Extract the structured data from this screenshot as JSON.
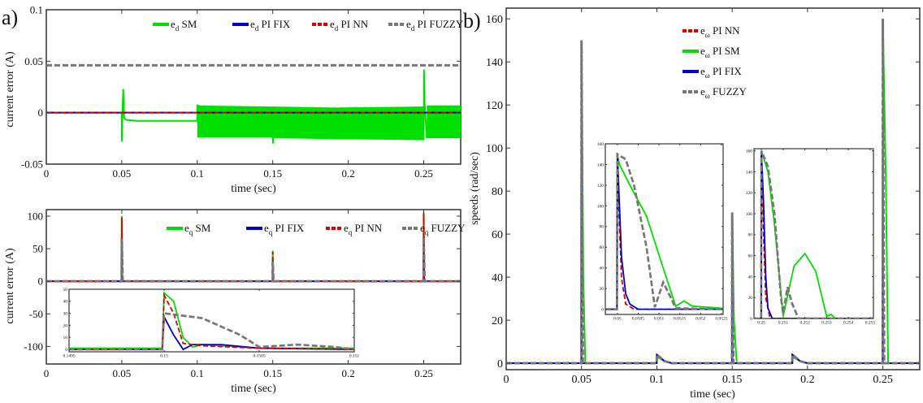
{
  "panel_labels": [
    "a)",
    "b)"
  ],
  "styles": {
    "SM": {
      "color": "#00e000",
      "dash": "none",
      "width": 2
    },
    "FIX": {
      "color": "#0000cc",
      "dash": "none",
      "width": 2
    },
    "NN": {
      "color": "#dd0000",
      "dash": "6 3",
      "width": 2
    },
    "FUZZY": {
      "color": "#777777",
      "dash": "7 3",
      "width": 3
    }
  },
  "chart_data": [
    {
      "id": "ed",
      "type": "line",
      "xlabel": "time (sec)",
      "ylabel": "current error (A)",
      "xlim": [
        0,
        0.2745
      ],
      "ylim": [
        -0.05,
        0.1
      ],
      "xticks": [
        "0",
        "0.05",
        "0.1",
        "0.15",
        "0.2",
        "0.25"
      ],
      "xtick_values": [
        0,
        0.05,
        0.1,
        0.15,
        0.2,
        0.25
      ],
      "yticks": [
        "-0.05",
        "0",
        "0.05",
        "0.1"
      ],
      "ytick_values": [
        -0.05,
        0,
        0.05,
        0.1
      ],
      "grid": false,
      "legend_position": "top",
      "legend": [
        {
          "base": "e",
          "sub": "d",
          "text": " SM",
          "style": "SM"
        },
        {
          "base": "e",
          "sub": "d",
          "text": "  PI FIX",
          "style": "FIX"
        },
        {
          "base": "e",
          "sub": "d",
          "text": "  PI NN",
          "style": "NN"
        },
        {
          "base": "e",
          "sub": "d",
          "text": "  PI FUZZY",
          "style": "FUZZY"
        }
      ],
      "bands": [
        {
          "style": "SM",
          "x": [
            0.1,
            0.15,
            0.19,
            0.2499
          ],
          "upper": [
            0.007,
            0.006,
            0.005,
            0.006
          ],
          "lower": [
            -0.024,
            -0.024,
            -0.026,
            -0.026
          ]
        },
        {
          "style": "SM",
          "x": [
            0.252,
            0.2745
          ],
          "upper": [
            0.007,
            0.007
          ],
          "lower": [
            -0.024,
            -0.024
          ]
        }
      ],
      "series": [
        {
          "style": "SM",
          "x": [
            0,
            0.0499,
            0.05,
            0.0505,
            0.051,
            0.0515,
            0.052,
            0.053,
            0.06,
            0.1,
            0.1,
            0.15,
            0.1502,
            0.1504,
            0.25,
            0.2502,
            0.2504,
            0.2506,
            0.252,
            0.2745
          ],
          "y": [
            0,
            0,
            -0.028,
            0.005,
            0.023,
            -0.004,
            -0.006,
            -0.007,
            -0.008,
            -0.008,
            0.007,
            -0.024,
            -0.03,
            -0.024,
            -0.026,
            0.042,
            0.026,
            0.01,
            -0.024,
            -0.024
          ]
        },
        {
          "style": "FIX",
          "x": [
            0,
            0.2745
          ],
          "y": [
            0,
            0
          ]
        },
        {
          "style": "NN",
          "x": [
            0,
            0.2745
          ],
          "y": [
            0,
            0
          ]
        },
        {
          "style": "FUZZY",
          "x": [
            0,
            0.2745
          ],
          "y": [
            0.046,
            0.046
          ]
        }
      ]
    },
    {
      "id": "eq",
      "type": "line",
      "xlabel": "time (sec)",
      "ylabel": "current error (A)",
      "xlim": [
        0,
        0.2745
      ],
      "ylim": [
        -127,
        110
      ],
      "xticks": [
        "0",
        "0.05",
        "0.1",
        "0.15",
        "0.2",
        "0.25"
      ],
      "xtick_values": [
        0,
        0.05,
        0.1,
        0.15,
        0.2,
        0.25
      ],
      "yticks": [
        "-100",
        "-50",
        "0",
        "50",
        "100"
      ],
      "ytick_values": [
        -100,
        -50,
        0,
        50,
        100
      ],
      "grid": false,
      "legend_position": "top",
      "legend": [
        {
          "base": "e",
          "sub": "q",
          "text": " SM",
          "style": "SM"
        },
        {
          "base": "e",
          "sub": "q",
          "text": "  PI FIX",
          "style": "FIX"
        },
        {
          "base": "e",
          "sub": "q",
          "text": "  PI NN",
          "style": "NN"
        },
        {
          "base": "e",
          "sub": "q",
          "text": " FUZZY",
          "style": "FUZZY"
        }
      ],
      "series": [
        {
          "style": "SM",
          "x": [
            0,
            0.0499,
            0.05,
            0.0503,
            0.1499,
            0.15,
            0.1502,
            0.2499,
            0.25,
            0.2503,
            0.2745
          ],
          "y": [
            0,
            0,
            100,
            0,
            0,
            47,
            0,
            0,
            106,
            0,
            0
          ]
        },
        {
          "style": "FIX",
          "x": [
            0,
            0.0499,
            0.05,
            0.0503,
            0.1499,
            0.15,
            0.1502,
            0.2499,
            0.25,
            0.2503,
            0.2745
          ],
          "y": [
            0,
            0,
            60,
            0,
            0,
            27,
            0,
            0,
            70,
            0,
            0
          ]
        },
        {
          "style": "NN",
          "x": [
            0,
            0.0499,
            0.05,
            0.0503,
            0.1499,
            0.15,
            0.1502,
            0.2499,
            0.25,
            0.2503,
            0.2745
          ],
          "y": [
            0,
            0,
            98,
            0,
            0,
            45,
            0,
            0,
            104,
            0,
            0
          ]
        },
        {
          "style": "FUZZY",
          "x": [
            0,
            0.0499,
            0.05,
            0.0506,
            0.1499,
            0.15,
            0.1505,
            0.2499,
            0.25,
            0.2506,
            0.2745
          ],
          "y": [
            0,
            0,
            65,
            0,
            0,
            30,
            0,
            0,
            68,
            0,
            0
          ]
        }
      ]
    },
    {
      "id": "eq_inset",
      "type": "line",
      "xlim": [
        0.1495,
        0.151
      ],
      "ylim": [
        -2,
        50
      ],
      "xticks": [
        "0.1495",
        "0.15",
        "0.1505",
        "0.151"
      ],
      "xtick_values": [
        0.1495,
        0.15,
        0.1505,
        0.151
      ],
      "yticks": [
        "0",
        "10",
        "20",
        "30",
        "40",
        "50"
      ],
      "ytick_values": [
        0,
        10,
        20,
        30,
        40,
        50
      ],
      "grid": false,
      "series": [
        {
          "style": "SM",
          "x": [
            0.1495,
            0.14999,
            0.15,
            0.15005,
            0.1501,
            0.15015,
            0.1502,
            0.1503,
            0.1505,
            0.151
          ],
          "y": [
            1,
            1,
            47,
            40,
            10,
            2,
            4,
            3,
            1,
            1
          ]
        },
        {
          "style": "FIX",
          "x": [
            0.1495,
            0.14999,
            0.15,
            0.15005,
            0.1501,
            0.15015,
            0.1503,
            0.1505,
            0.151
          ],
          "y": [
            0,
            0,
            27,
            12,
            0,
            4,
            4,
            1,
            0
          ]
        },
        {
          "style": "NN",
          "x": [
            0.1495,
            0.14999,
            0.15,
            0.15005,
            0.1501,
            0.1502,
            0.1505,
            0.151
          ],
          "y": [
            0,
            0,
            45,
            30,
            5,
            3,
            1,
            0
          ]
        },
        {
          "style": "FUZZY",
          "x": [
            0.1495,
            0.14999,
            0.15,
            0.1502,
            0.1504,
            0.1505,
            0.1507,
            0.1509,
            0.151
          ],
          "y": [
            0,
            0,
            30,
            26,
            12,
            2,
            4,
            2,
            0
          ]
        }
      ]
    },
    {
      "id": "speed",
      "type": "line",
      "xlabel": "time (sec)",
      "ylabel": "speeds (rad/sec)",
      "xlim": [
        0,
        0.2745
      ],
      "ylim": [
        -3,
        165
      ],
      "xticks": [
        "0",
        "0.05",
        "0.1",
        "0.15",
        "0.2",
        "0.25"
      ],
      "xtick_values": [
        0,
        0.05,
        0.1,
        0.15,
        0.2,
        0.25
      ],
      "yticks": [
        "0",
        "20",
        "40",
        "60",
        "80",
        "100",
        "120",
        "140",
        "160"
      ],
      "ytick_values": [
        0,
        20,
        40,
        60,
        80,
        100,
        120,
        140,
        160
      ],
      "grid": false,
      "legend_position": "top-center",
      "legend": [
        {
          "base": "e",
          "sub": "ω",
          "text": " PI NN",
          "style": "NN"
        },
        {
          "base": "e",
          "sub": "ω",
          "text": " PI SM",
          "style": "SM"
        },
        {
          "base": "e",
          "sub": "ω",
          "text": "  PI FIX",
          "style": "FIX"
        },
        {
          "base": "e",
          "sub": "ω",
          "text": "  FUZZY",
          "style": "FUZZY"
        }
      ],
      "series": [
        {
          "style": "SM",
          "x": [
            0,
            0.0499,
            0.05,
            0.0512,
            0.0525,
            0.0999,
            0.1,
            0.105,
            0.11,
            0.1499,
            0.15,
            0.1512,
            0.153,
            0.1899,
            0.19,
            0.195,
            0.2,
            0.2499,
            0.25,
            0.252,
            0.2535,
            0.2745
          ],
          "y": [
            0,
            0,
            150,
            40,
            0,
            0,
            3,
            1,
            0,
            0,
            70,
            20,
            0,
            0,
            3,
            1,
            0,
            0,
            160,
            85,
            0,
            0
          ]
        },
        {
          "style": "NN",
          "x": [
            0,
            0.0499,
            0.05,
            0.0502,
            0.0999,
            0.1,
            0.105,
            0.11,
            0.1499,
            0.15,
            0.1502,
            0.1899,
            0.19,
            0.195,
            0.2,
            0.2499,
            0.25,
            0.2502,
            0.2745
          ],
          "y": [
            0,
            0,
            150,
            0,
            0,
            4,
            1,
            0,
            0,
            70,
            0,
            0,
            4,
            1,
            0,
            0,
            160,
            0,
            0
          ]
        },
        {
          "style": "FIX",
          "x": [
            0,
            0.0499,
            0.05,
            0.0503,
            0.0999,
            0.1,
            0.105,
            0.11,
            0.1499,
            0.15,
            0.1503,
            0.1899,
            0.19,
            0.195,
            0.2,
            0.2499,
            0.25,
            0.2503,
            0.2745
          ],
          "y": [
            0,
            0,
            150,
            0,
            0,
            4,
            1,
            0,
            0,
            70,
            0,
            0,
            4,
            1,
            0,
            0,
            160,
            0,
            0
          ]
        },
        {
          "style": "FUZZY",
          "x": [
            0,
            0.0499,
            0.05,
            0.0509,
            0.0999,
            0.1,
            0.105,
            0.11,
            0.1499,
            0.15,
            0.1508,
            0.1899,
            0.19,
            0.195,
            0.2,
            0.2499,
            0.25,
            0.2509,
            0.2745
          ],
          "y": [
            0,
            0,
            150,
            0,
            0,
            4,
            1,
            0,
            0,
            70,
            0,
            0,
            4,
            1,
            0,
            0,
            160,
            0,
            0
          ]
        }
      ]
    },
    {
      "id": "speed_inset1",
      "type": "line",
      "xlim": [
        0.04971,
        0.05254
      ],
      "ylim": [
        -5,
        160
      ],
      "xticks": [
        "0.05",
        "0.0505",
        "0.051",
        "0.0515",
        "0.052",
        "0.0525"
      ],
      "xtick_values": [
        0.05,
        0.0505,
        0.051,
        0.0515,
        0.052,
        0.0525
      ],
      "yticks": [
        "0",
        "20",
        "40",
        "60",
        "80",
        "100",
        "120",
        "140",
        "160"
      ],
      "ytick_values": [
        0,
        20,
        40,
        60,
        80,
        100,
        120,
        140,
        160
      ],
      "grid": false,
      "series": [
        {
          "style": "SM",
          "x": [
            0.04971,
            0.04999,
            0.05,
            0.05005,
            0.0503,
            0.0507,
            0.0511,
            0.0514,
            0.0516,
            0.0518,
            0.05254
          ],
          "y": [
            0,
            0,
            150,
            140,
            120,
            90,
            40,
            3,
            8,
            3,
            1
          ]
        },
        {
          "style": "NN",
          "x": [
            0.04971,
            0.04999,
            0.05,
            0.05005,
            0.0501,
            0.0502,
            0.0504,
            0.05254
          ],
          "y": [
            0,
            0,
            150,
            80,
            30,
            5,
            0,
            0
          ]
        },
        {
          "style": "FIX",
          "x": [
            0.04971,
            0.04999,
            0.05,
            0.05005,
            0.0501,
            0.0502,
            0.0503,
            0.0505,
            0.05254
          ],
          "y": [
            0,
            0,
            150,
            100,
            50,
            15,
            5,
            0,
            0
          ]
        },
        {
          "style": "FUZZY",
          "x": [
            0.04971,
            0.04999,
            0.05,
            0.0502,
            0.0504,
            0.0507,
            0.0509,
            0.0511,
            0.0513,
            0.0514,
            0.05254
          ],
          "y": [
            0,
            0,
            150,
            145,
            120,
            60,
            2,
            26,
            10,
            1,
            0
          ]
        }
      ]
    },
    {
      "id": "speed_inset2",
      "type": "line",
      "xlim": [
        0.24966,
        0.25515
      ],
      "ylim": [
        0,
        162
      ],
      "xticks": [
        "0.25",
        "0.251",
        "0.252",
        "0.253",
        "0.254",
        "0.255"
      ],
      "xtick_values": [
        0.25,
        0.251,
        0.252,
        0.253,
        0.254,
        0.255
      ],
      "yticks": [
        "0",
        "20",
        "40",
        "60",
        "80",
        "100",
        "120",
        "140",
        "160"
      ],
      "ytick_values": [
        0,
        20,
        40,
        60,
        80,
        100,
        120,
        140,
        160
      ],
      "grid": false,
      "series": [
        {
          "style": "SM",
          "x": [
            0.24966,
            0.24999,
            0.25,
            0.2503,
            0.2506,
            0.251,
            0.2515,
            0.252,
            0.2525,
            0.253,
            0.2532,
            0.2534,
            0.25515
          ],
          "y": [
            0,
            0,
            160,
            140,
            90,
            2,
            50,
            62,
            45,
            2,
            4,
            0,
            0
          ]
        },
        {
          "style": "NN",
          "x": [
            0.24966,
            0.24999,
            0.25,
            0.2501,
            0.2502,
            0.2504,
            0.25515
          ],
          "y": [
            0,
            0,
            160,
            80,
            20,
            0,
            0
          ]
        },
        {
          "style": "FIX",
          "x": [
            0.24966,
            0.24999,
            0.25,
            0.2501,
            0.2502,
            0.2503,
            0.2505,
            0.25515
          ],
          "y": [
            0,
            0,
            160,
            110,
            40,
            10,
            0,
            0
          ]
        },
        {
          "style": "FUZZY",
          "x": [
            0.24966,
            0.24999,
            0.25,
            0.2503,
            0.2506,
            0.2509,
            0.251,
            0.2512,
            0.2514,
            0.2517,
            0.25515
          ],
          "y": [
            0,
            0,
            160,
            145,
            100,
            20,
            5,
            30,
            15,
            0,
            0
          ]
        }
      ]
    }
  ]
}
